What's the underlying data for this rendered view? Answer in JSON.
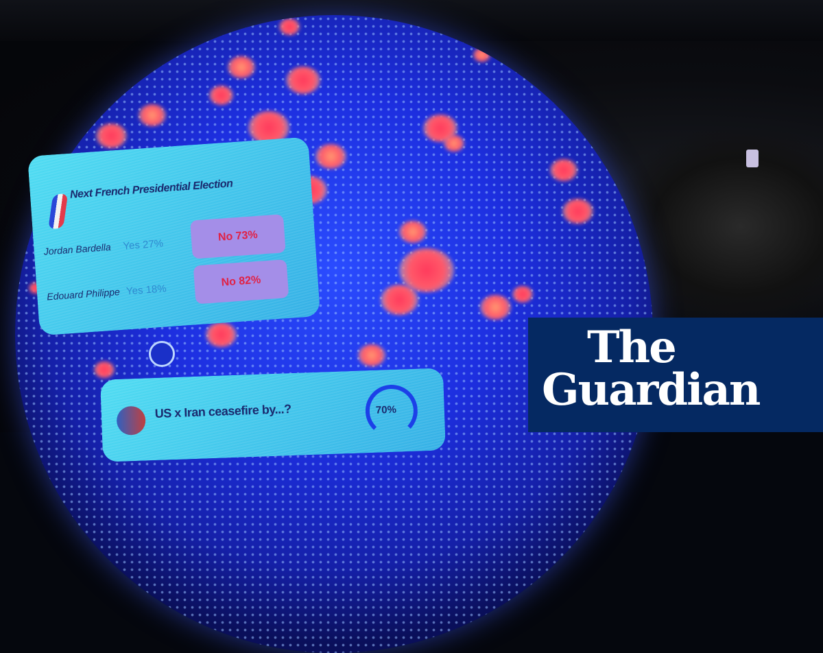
{
  "poll_panel": {
    "title": "Next French Presidential Election",
    "rows": [
      {
        "name": "Jordan Bardella",
        "yes": "Yes 27%",
        "no": "No 73%"
      },
      {
        "name": "Edouard Philippe",
        "yes": "Yes 18%",
        "no": "No 82%"
      }
    ]
  },
  "ceasefire_panel": {
    "question": "US x Iran ceasefire by...?",
    "percent": "70%",
    "gauge_value": 0.7
  },
  "logo": {
    "line1": "The",
    "line2": "Guardian",
    "background": "#052962"
  },
  "colors": {
    "sphere": "#1d2fe0",
    "hotspot": "#ff3a5c",
    "panel": "#46d8f0"
  }
}
